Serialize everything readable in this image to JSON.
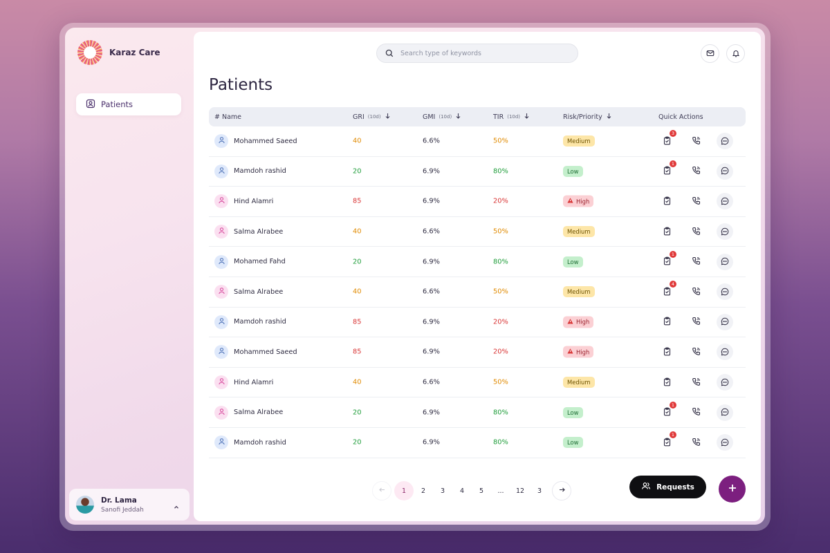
{
  "brand": {
    "name": "Karaz Care"
  },
  "sidebar": {
    "items": [
      {
        "label": "Patients",
        "icon": "user-square-icon"
      }
    ]
  },
  "user": {
    "name": "Dr. Lama",
    "org": "Sanofi Jeddah"
  },
  "search": {
    "placeholder": "Search type of keywords"
  },
  "page": {
    "title": "Patients"
  },
  "table": {
    "headers": {
      "name": "# Name",
      "gri": "GRI",
      "gri_unit": "(10d)",
      "gmi": "GMI",
      "gmi_unit": "(10d)",
      "tir": "TIR",
      "tir_unit": "(10d)",
      "risk": "Risk/Priority",
      "actions": "Quick Actions"
    },
    "rows": [
      {
        "name": "Mohammed Saeed",
        "gender": "m",
        "gri": "40",
        "gmi": "6.6%",
        "tir": "50%",
        "risk": "Medium",
        "notes": "3"
      },
      {
        "name": "Mamdoh rashid",
        "gender": "m",
        "gri": "20",
        "gmi": "6.9%",
        "tir": "80%",
        "risk": "Low",
        "notes": "1"
      },
      {
        "name": "Hind Alamri",
        "gender": "f",
        "gri": "85",
        "gmi": "6.9%",
        "tir": "20%",
        "risk": "High",
        "notes": ""
      },
      {
        "name": "Salma Alrabee",
        "gender": "f",
        "gri": "40",
        "gmi": "6.6%",
        "tir": "50%",
        "risk": "Medium",
        "notes": ""
      },
      {
        "name": "Mohamed Fahd",
        "gender": "m",
        "gri": "20",
        "gmi": "6.9%",
        "tir": "80%",
        "risk": "Low",
        "notes": "1"
      },
      {
        "name": "Salma Alrabee",
        "gender": "f",
        "gri": "40",
        "gmi": "6.6%",
        "tir": "50%",
        "risk": "Medium",
        "notes": "4"
      },
      {
        "name": "Mamdoh rashid",
        "gender": "m",
        "gri": "85",
        "gmi": "6.9%",
        "tir": "20%",
        "risk": "High",
        "notes": ""
      },
      {
        "name": "Mohammed Saeed",
        "gender": "m",
        "gri": "85",
        "gmi": "6.9%",
        "tir": "20%",
        "risk": "High",
        "notes": ""
      },
      {
        "name": "Hind Alamri",
        "gender": "f",
        "gri": "40",
        "gmi": "6.6%",
        "tir": "50%",
        "risk": "Medium",
        "notes": ""
      },
      {
        "name": "Salma Alrabee",
        "gender": "f",
        "gri": "20",
        "gmi": "6.9%",
        "tir": "80%",
        "risk": "Low",
        "notes": "1"
      },
      {
        "name": "Mamdoh rashid",
        "gender": "m",
        "gri": "20",
        "gmi": "6.9%",
        "tir": "80%",
        "risk": "Low",
        "notes": "1"
      }
    ]
  },
  "pagination": {
    "pages": [
      "1",
      "2",
      "3",
      "4",
      "5",
      "...",
      "12",
      "3"
    ],
    "current": "1"
  },
  "actions": {
    "requests_label": "Requests"
  },
  "colors": {
    "medium": "#e08a00",
    "low": "#1f9d3a",
    "high": "#d93636",
    "accent": "#7c1f7f"
  }
}
